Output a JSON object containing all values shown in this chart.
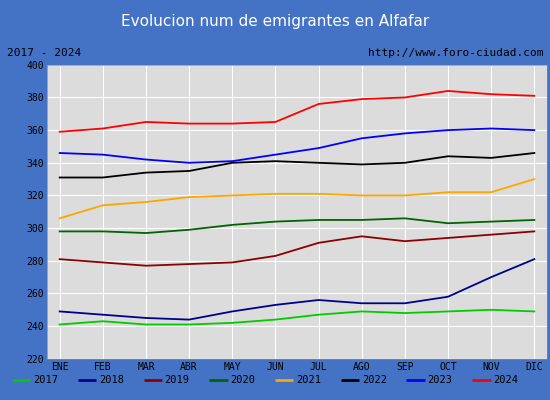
{
  "title": "Evolucion num de emigrantes en Alfafar",
  "subtitle_left": "2017 - 2024",
  "subtitle_right": "http://www.foro-ciudad.com",
  "ylim": [
    220,
    400
  ],
  "yticks": [
    220,
    240,
    260,
    280,
    300,
    320,
    340,
    360,
    380,
    400
  ],
  "months": [
    "ENE",
    "FEB",
    "MAR",
    "ABR",
    "MAY",
    "JUN",
    "JUL",
    "AGO",
    "SEP",
    "OCT",
    "NOV",
    "DIC"
  ],
  "years": [
    "2017",
    "2018",
    "2019",
    "2020",
    "2021",
    "2022",
    "2023",
    "2024"
  ],
  "series": {
    "2017": {
      "color": "#00cc00",
      "data": [
        241,
        243,
        241,
        241,
        242,
        244,
        247,
        249,
        248,
        249,
        250,
        249
      ]
    },
    "2018": {
      "color": "#00008B",
      "data": [
        249,
        247,
        245,
        244,
        249,
        253,
        256,
        254,
        254,
        258,
        270,
        281
      ]
    },
    "2019": {
      "color": "#8B0000",
      "data": [
        281,
        279,
        277,
        278,
        279,
        283,
        291,
        295,
        292,
        294,
        296,
        298
      ]
    },
    "2020": {
      "color": "#006400",
      "data": [
        298,
        298,
        297,
        299,
        302,
        304,
        305,
        305,
        306,
        303,
        304,
        305
      ]
    },
    "2021": {
      "color": "#FFA500",
      "data": [
        306,
        314,
        316,
        319,
        320,
        321,
        321,
        320,
        320,
        322,
        322,
        330
      ]
    },
    "2022": {
      "color": "#000000",
      "data": [
        331,
        331,
        334,
        335,
        340,
        341,
        340,
        339,
        340,
        344,
        343,
        346
      ]
    },
    "2023": {
      "color": "#0000FF",
      "data": [
        346,
        345,
        342,
        340,
        341,
        345,
        349,
        355,
        358,
        360,
        361,
        360
      ]
    },
    "2024": {
      "color": "#FF0000",
      "data": [
        359,
        361,
        365,
        364,
        364,
        365,
        376,
        379,
        380,
        384,
        382,
        381
      ]
    }
  },
  "title_bg_color": "#4472C4",
  "title_font_color": "#FFFFFF",
  "subtitle_bg_color": "#DCDCDC",
  "plot_bg_color": "#DCDCDC",
  "grid_color": "#FFFFFF",
  "outer_bg_color": "#4472C4",
  "legend_bg_color": "#F0F0F0",
  "legend_border_color": "#4472C4"
}
